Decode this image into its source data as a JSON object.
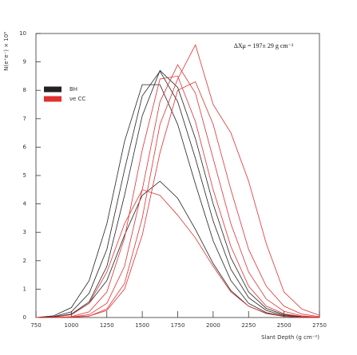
{
  "chart_data": {
    "type": "line",
    "y_label": "N(e⁺e⁻) × 10⁸",
    "x_label": "Slant Depth (g cm⁻²)",
    "annotation": "ΔXμ = 197± 29 g cm⁻²",
    "x": [
      750,
      875,
      1000,
      1125,
      1250,
      1375,
      1500,
      1625,
      1750,
      1875,
      2000,
      2125,
      2250,
      2375,
      2500,
      2625,
      2750
    ],
    "xlim": [
      750,
      2750
    ],
    "xticks": [
      750,
      1000,
      1250,
      1500,
      1750,
      2000,
      2250,
      2500,
      2750
    ],
    "ylim": [
      0,
      10
    ],
    "yticks": [
      0,
      1,
      2,
      3,
      4,
      5,
      6,
      7,
      8,
      9,
      10
    ],
    "legend": "upper left",
    "series": [
      {
        "name": "BH",
        "color": "#222222",
        "curves": [
          [
            0,
            0.03,
            0.2,
            0.85,
            2.4,
            5.2,
            7.8,
            8.67,
            7.6,
            5.6,
            3.4,
            1.7,
            0.7,
            0.25,
            0.07,
            0.02,
            0
          ],
          [
            0,
            0.06,
            0.35,
            1.3,
            3.3,
            6.2,
            8.2,
            8.2,
            6.8,
            4.7,
            2.7,
            1.3,
            0.5,
            0.17,
            0.05,
            0.01,
            0
          ],
          [
            0,
            0.02,
            0.12,
            0.55,
            1.8,
            4.3,
            7.1,
            8.7,
            8.1,
            6.3,
            4.0,
            2.1,
            0.9,
            0.32,
            0.1,
            0.03,
            0
          ],
          [
            0,
            0.02,
            0.1,
            0.5,
            1.3,
            2.9,
            4.3,
            4.8,
            4.2,
            3.1,
            1.9,
            0.95,
            0.4,
            0.14,
            0.04,
            0.01,
            0
          ]
        ]
      },
      {
        "name": "νe CC",
        "color": "#e03030",
        "curves": [
          [
            0,
            0,
            0.02,
            0.1,
            0.5,
            1.8,
            4.5,
            7.6,
            8.9,
            7.9,
            5.6,
            3.3,
            1.6,
            0.65,
            0.22,
            0.06,
            0.01
          ],
          [
            0,
            0,
            0.01,
            0.05,
            0.25,
            1.0,
            2.9,
            5.8,
            8.0,
            8.3,
            6.8,
            4.5,
            2.4,
            1.1,
            0.4,
            0.12,
            0.03
          ],
          [
            0,
            0,
            0.03,
            0.2,
            0.9,
            2.8,
            5.9,
            8.4,
            8.5,
            6.9,
            4.5,
            2.5,
            1.1,
            0.4,
            0.13,
            0.04,
            0.01
          ],
          [
            0,
            0,
            0.01,
            0.05,
            0.3,
            1.2,
            3.5,
            6.8,
            8.4,
            9.6,
            7.5,
            6.5,
            4.8,
            2.6,
            0.9,
            0.3,
            0.08
          ],
          [
            0,
            0.01,
            0.1,
            0.5,
            1.6,
            3.3,
            4.5,
            4.3,
            3.6,
            2.8,
            1.8,
            0.9,
            0.4,
            0.15,
            0.05,
            0.01,
            0
          ]
        ]
      }
    ]
  }
}
